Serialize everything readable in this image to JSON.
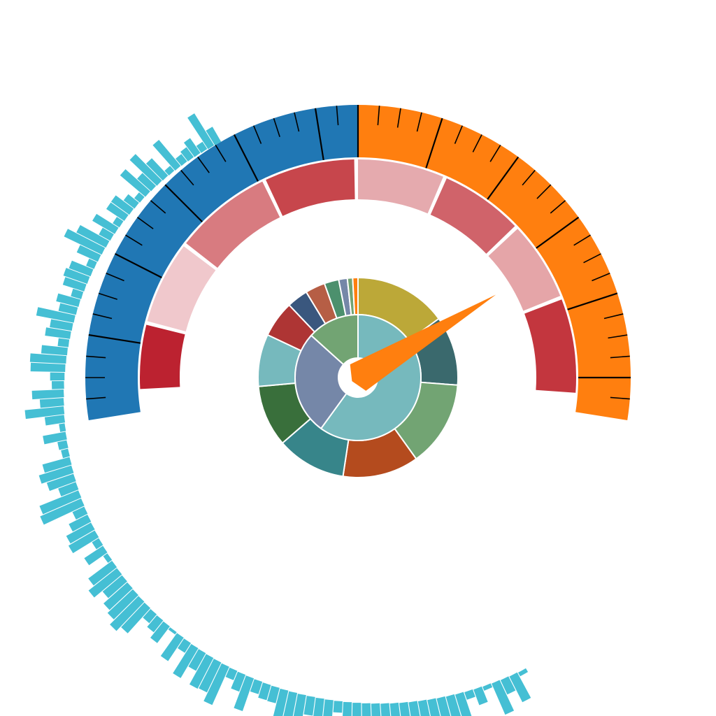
{
  "chart_data": {
    "type": "gauge",
    "title": "",
    "gauge": {
      "start_angle_deg": -99,
      "end_angle_deg": 99,
      "value_angle_deg": 59,
      "bands": [
        {
          "name": "",
          "color": "#2077b4",
          "from_angle_deg": -99,
          "to_angle_deg": 0
        },
        {
          "name": "",
          "color": "#ff7f0f",
          "from_angle_deg": 0,
          "to_angle_deg": 99
        }
      ],
      "major_tick_angles_deg": [
        -81,
        -63,
        -45,
        -27,
        -9,
        0,
        18,
        36,
        54,
        72,
        90
      ],
      "minor_tick_step_deg": 4.5,
      "inner_segments": [
        {
          "from_angle_deg": -93,
          "to_angle_deg": -76,
          "color": "#bc2230"
        },
        {
          "from_angle_deg": -75,
          "to_angle_deg": -53,
          "color": "#f0c8cc"
        },
        {
          "from_angle_deg": -52,
          "to_angle_deg": -26,
          "color": "#d87b80"
        },
        {
          "from_angle_deg": -25,
          "to_angle_deg": -1,
          "color": "#c7464c"
        },
        {
          "from_angle_deg": 0,
          "to_angle_deg": 23,
          "color": "#e5aaae"
        },
        {
          "from_angle_deg": 24,
          "to_angle_deg": 46,
          "color": "#d0636a"
        },
        {
          "from_angle_deg": 47,
          "to_angle_deg": 68,
          "color": "#e5a5a8"
        },
        {
          "from_angle_deg": 69,
          "to_angle_deg": 94,
          "color": "#c3363e"
        }
      ]
    },
    "spiral_bars": {
      "color": "#45bfd4",
      "start_angle_deg": -210,
      "end_angle_deg": -30,
      "values": [
        4,
        38,
        20,
        45,
        4,
        21,
        9,
        36,
        44,
        37,
        44,
        23,
        48,
        53,
        27,
        39,
        44,
        36,
        18,
        55,
        14,
        25,
        41,
        24,
        38,
        53,
        45,
        20,
        20,
        16,
        46,
        23,
        12,
        56,
        44,
        46,
        26,
        46,
        14,
        37,
        2,
        27,
        19,
        14,
        45,
        54,
        46,
        42,
        33,
        48,
        39,
        5,
        29,
        9,
        40,
        37,
        27,
        16,
        60,
        56,
        24,
        37,
        45,
        37,
        8,
        11,
        30,
        6,
        25,
        52,
        31,
        42,
        15,
        18,
        46,
        48,
        34,
        13,
        33,
        29,
        51,
        23,
        30,
        13,
        29,
        33,
        30,
        10,
        30,
        56,
        44,
        16,
        34,
        9,
        28,
        29,
        17,
        8,
        44,
        24,
        50,
        31,
        7,
        45,
        11,
        15,
        23,
        10,
        50,
        22
      ]
    },
    "sunburst": {
      "inner_ring": [
        {
          "value": 27,
          "color": "#76b9bd"
        },
        {
          "value": 12,
          "color": "#7587a8"
        },
        {
          "value": 6,
          "color": "#72a473"
        }
      ],
      "outer_ring": [
        {
          "value": 14.0,
          "color": "#bca838"
        },
        {
          "value": 10.5,
          "color": "#3a696d"
        },
        {
          "value": 13.0,
          "color": "#72a473"
        },
        {
          "value": 11.5,
          "color": "#b44b1e"
        },
        {
          "value": 10.5,
          "color": "#37858a"
        },
        {
          "value": 9.3,
          "color": "#396f3b"
        },
        {
          "value": 7.9,
          "color": "#76b9bd"
        },
        {
          "value": 5.5,
          "color": "#ae3534"
        },
        {
          "value": 3.2,
          "color": "#3a577e"
        },
        {
          "value": 3.0,
          "color": "#b65e45"
        },
        {
          "value": 2.2,
          "color": "#4c906d"
        },
        {
          "value": 1.3,
          "color": "#7587a8"
        },
        {
          "value": 0.8,
          "color": "#72a473"
        },
        {
          "value": 0.8,
          "color": "#ff7f0f"
        }
      ]
    },
    "needle_color": "#ff7f0f"
  }
}
